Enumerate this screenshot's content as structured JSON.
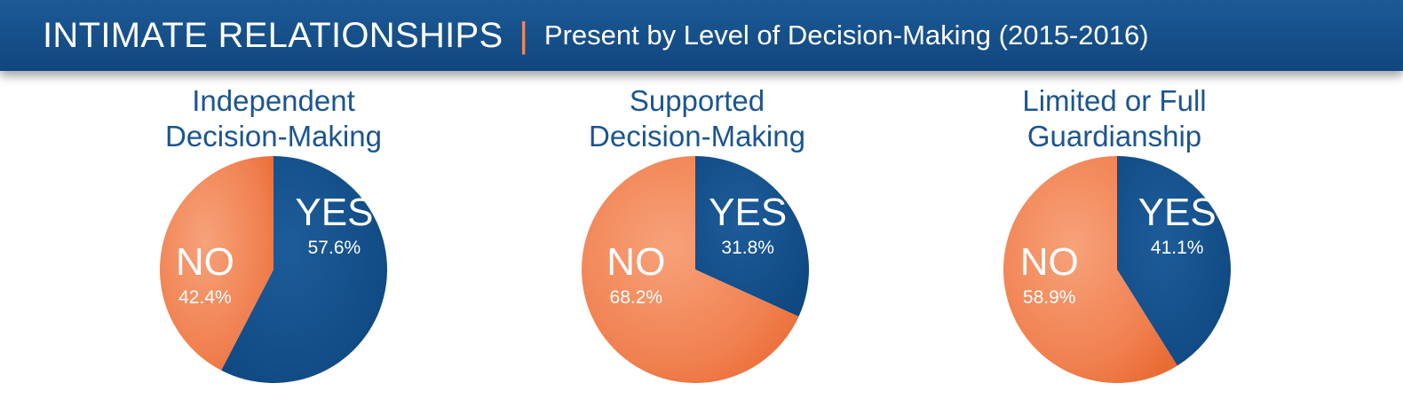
{
  "header": {
    "title": "INTIMATE RELATIONSHIPS",
    "separator": "|",
    "subtitle": "Present by Level of Decision-Making (2015-2016)"
  },
  "colors": {
    "yes": "#14508d",
    "no": "#f0804f",
    "banner": "#17528d",
    "title_text": "#1b5590"
  },
  "chart_data": [
    {
      "type": "pie",
      "title_lines": [
        "Independent",
        "Decision-Making"
      ],
      "slices": [
        {
          "label": "YES",
          "value": 57.6,
          "value_label": "57.6%",
          "color": "#14508d"
        },
        {
          "label": "NO",
          "value": 42.4,
          "value_label": "42.4%",
          "color": "#f0804f"
        }
      ]
    },
    {
      "type": "pie",
      "title_lines": [
        "Supported",
        "Decision-Making"
      ],
      "slices": [
        {
          "label": "YES",
          "value": 31.8,
          "value_label": "31.8%",
          "color": "#14508d"
        },
        {
          "label": "NO",
          "value": 68.2,
          "value_label": "68.2%",
          "color": "#f0804f"
        }
      ]
    },
    {
      "type": "pie",
      "title_lines": [
        "Limited or Full",
        "Guardianship"
      ],
      "slices": [
        {
          "label": "YES",
          "value": 41.1,
          "value_label": "41.1%",
          "color": "#14508d"
        },
        {
          "label": "NO",
          "value": 58.9,
          "value_label": "58.9%",
          "color": "#f0804f"
        }
      ]
    }
  ]
}
